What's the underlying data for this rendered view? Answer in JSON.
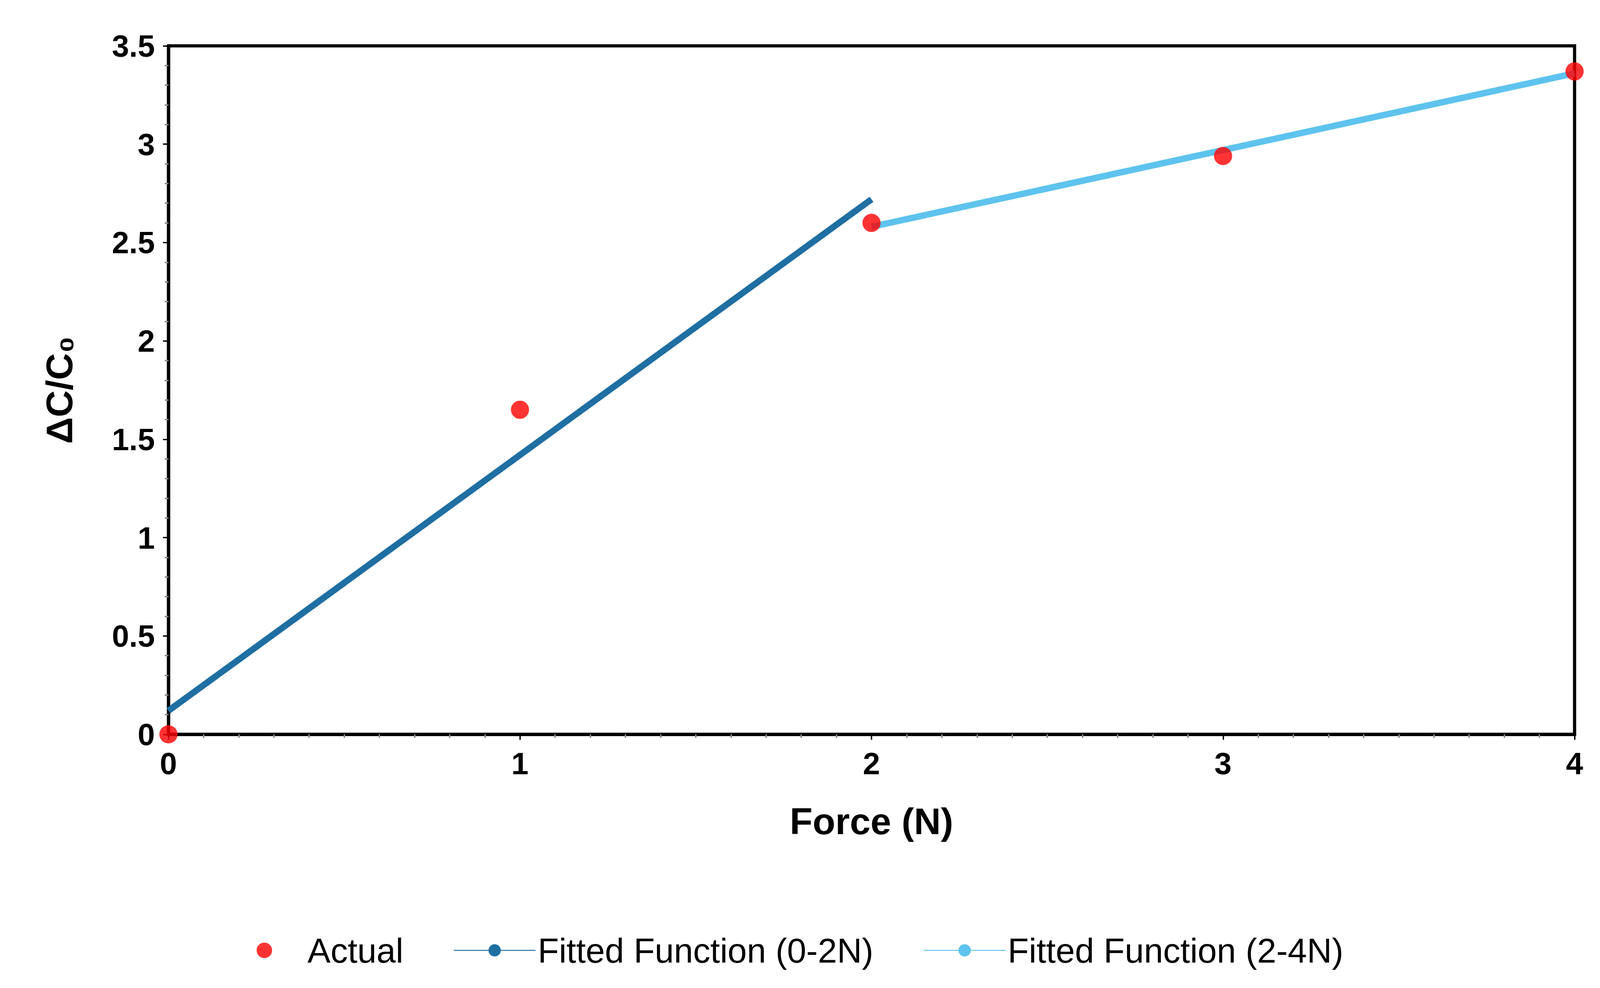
{
  "chart_data": {
    "type": "scatter",
    "xlabel": "Force (N)",
    "ylabel": "ΔC/C₀",
    "xlim": [
      0,
      4
    ],
    "xticks": [
      0,
      1,
      2,
      3,
      4
    ],
    "ylim": [
      0,
      3.5
    ],
    "yticks": [
      0,
      0.5,
      1,
      1.5,
      2,
      2.5,
      3,
      3.5
    ],
    "grid": false,
    "legend": "bottom",
    "series": [
      {
        "name": "Actual",
        "type": "scatter",
        "color": "#ff0000",
        "marker": "circle",
        "x": [
          0,
          1,
          2,
          3,
          4
        ],
        "values": [
          0,
          1.65,
          2.6,
          2.94,
          3.37
        ]
      },
      {
        "name": "Fitted Function (0-2N)",
        "type": "line",
        "color": "#1f6fa3",
        "line_style": "solid",
        "x": [
          0,
          2
        ],
        "values": [
          0.12,
          2.72
        ]
      },
      {
        "name": "Fitted Function (2-4N)",
        "type": "line",
        "color": "#5ec3ee",
        "line_style": "solid",
        "x": [
          2,
          4
        ],
        "values": [
          2.58,
          3.36
        ]
      }
    ]
  }
}
